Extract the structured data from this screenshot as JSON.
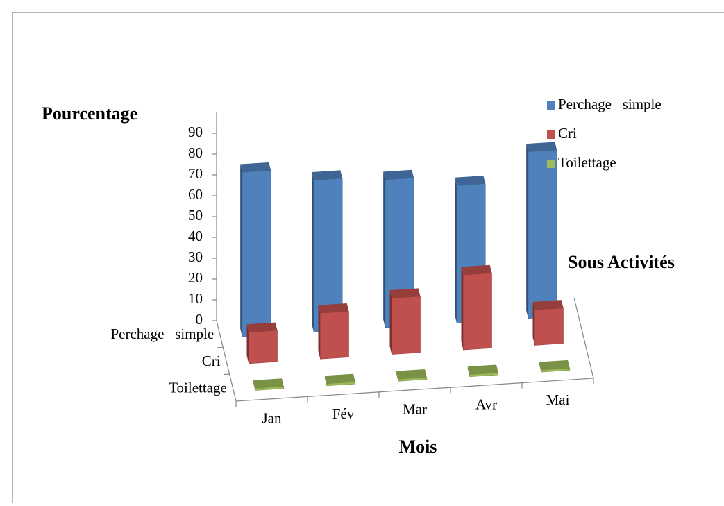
{
  "chart_data": {
    "type": "bar3d",
    "y_label": "Pourcentage",
    "depth_label": "Sous Activités",
    "x_label": "Mois",
    "categories": [
      "Jan",
      "Fév",
      "Mar",
      "Avr",
      "Mai"
    ],
    "series": [
      {
        "name": "Perchage   simple",
        "color": "#4f81bd",
        "values": [
          79,
          73,
          71,
          66,
          80
        ]
      },
      {
        "name": "Cri",
        "color": "#c0504d",
        "values": [
          15,
          22,
          27,
          36,
          17
        ]
      },
      {
        "name": "Toilettage",
        "color": "#9bbb59",
        "values": [
          1,
          1,
          1,
          1,
          1
        ]
      }
    ],
    "ylim": [
      0,
      100
    ],
    "yticks": [
      0,
      10,
      20,
      30,
      40,
      50,
      60,
      70,
      80,
      90
    ]
  }
}
